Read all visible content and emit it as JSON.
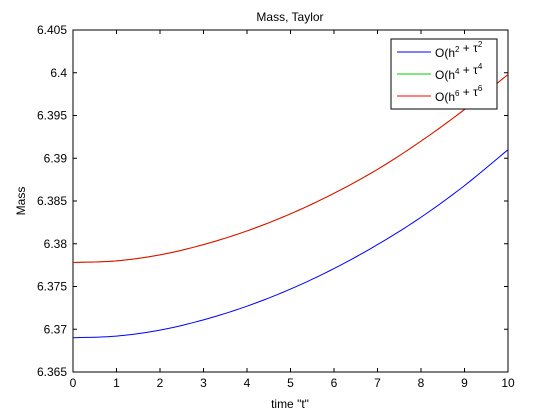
{
  "chart_data": {
    "type": "line",
    "title": "Mass, Taylor",
    "xlabel": "time \"t\"",
    "ylabel": "Mass",
    "xlim": [
      0,
      10
    ],
    "ylim": [
      6.365,
      6.405
    ],
    "xticks": [
      0,
      1,
      2,
      3,
      4,
      5,
      6,
      7,
      8,
      9,
      10
    ],
    "xtick_labels": [
      "0",
      "1",
      "2",
      "3",
      "4",
      "5",
      "6",
      "7",
      "8",
      "9",
      "10"
    ],
    "yticks": [
      6.365,
      6.37,
      6.375,
      6.38,
      6.385,
      6.39,
      6.395,
      6.4,
      6.405
    ],
    "ytick_labels": [
      "6.365",
      "6.37",
      "6.375",
      "6.38",
      "6.385",
      "6.39",
      "6.395",
      "6.4",
      "6.405"
    ],
    "grid": false,
    "legend_position": "top-right",
    "x": [
      0,
      1,
      2,
      3,
      4,
      5,
      6,
      7,
      8,
      9,
      10
    ],
    "series": [
      {
        "name": "O(h2 + τ2",
        "legend": {
          "base": "O(h",
          "exp1": "2",
          "mid": " + τ",
          "exp2": "2"
        },
        "color": "#0000ff",
        "values": [
          6.369,
          6.3692,
          6.3699,
          6.3711,
          6.3727,
          6.3747,
          6.3771,
          6.3799,
          6.3831,
          6.3868,
          6.391
        ]
      },
      {
        "name": "O(h4 + τ4",
        "legend": {
          "base": "O(h",
          "exp1": "4",
          "mid": " + τ",
          "exp2": "4"
        },
        "color": "#00cc00",
        "values": [
          6.3778,
          6.378,
          6.3787,
          6.3799,
          6.3815,
          6.3835,
          6.3859,
          6.3887,
          6.392,
          6.3957,
          6.3998
        ]
      },
      {
        "name": "O(h6 + τ6",
        "legend": {
          "base": "O(h",
          "exp1": "6",
          "mid": " + τ",
          "exp2": "6"
        },
        "color": "#ff0000",
        "values": [
          6.3778,
          6.378,
          6.3787,
          6.3799,
          6.3815,
          6.3835,
          6.3859,
          6.3887,
          6.392,
          6.3957,
          6.3998
        ]
      }
    ]
  }
}
